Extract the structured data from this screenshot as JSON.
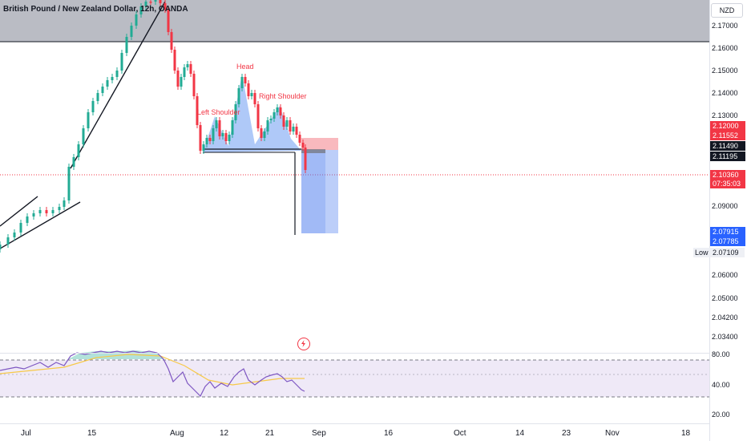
{
  "title": "British Pound / New Zealand Dollar, 12h, OANDA",
  "currency": "NZD",
  "price_axis": [
    "2.17000",
    "2.16000",
    "2.15000",
    "2.14000",
    "2.13000",
    "2.09000",
    "2.06000",
    "2.05000",
    "2.04200",
    "2.03400"
  ],
  "price_tags": {
    "tp_upper": "2.12000",
    "entry_a": "2.11552",
    "entry_b": "2.11490",
    "entry_c": "2.11195",
    "last": "2.10360",
    "countdown": "07:35:03",
    "target_a": "2.07915",
    "target_b": "2.07785"
  },
  "low": {
    "label": "Low",
    "value": "2.07109"
  },
  "rsi_axis": [
    "80.00",
    "40.00",
    "20.00"
  ],
  "date_axis": [
    "Jul",
    "15",
    "Aug",
    "12",
    "21",
    "Sep",
    "16",
    "Oct",
    "14",
    "23",
    "Nov",
    "18"
  ],
  "annotations": {
    "head": "Head",
    "left_shoulder": "Left Shoulder",
    "right_shoulder": "Right Shoulder"
  },
  "colors": {
    "up": "#22ab94",
    "down": "#f23645",
    "zone": "#b2b5be",
    "target_fill": "#4f7ff0",
    "stop_fill": "#f7a1a8",
    "pattern_fill": "#6e9cf2",
    "rsi_line": "#7e57c2",
    "rsi_ma": "#f7c948",
    "rsi_band": "#ede7f6"
  },
  "icons": {
    "alert": "bolt-icon"
  }
}
